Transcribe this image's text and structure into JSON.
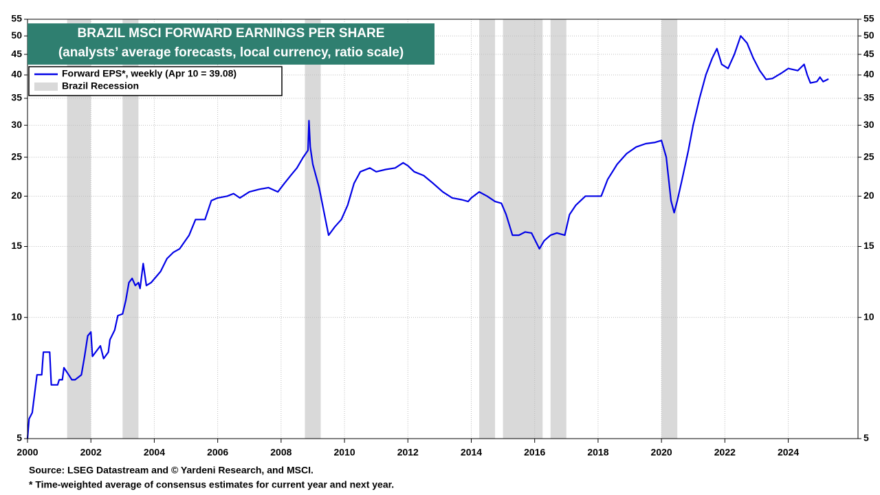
{
  "chart_data": {
    "type": "line",
    "title": "BRAZIL MSCI FORWARD EARNINGS PER SHARE",
    "subtitle": "(analysts’ average forecasts, local currency, ratio scale)",
    "log_scale": true,
    "grid": true,
    "legend_position": "upper left",
    "series": [
      {
        "name": "Forward EPS*, weekly (Apr 10 = 39.08)",
        "color": "#0000e6",
        "x": [
          2000.0,
          2000.05,
          2000.15,
          2000.3,
          2000.45,
          2000.5,
          2000.7,
          2000.75,
          2000.95,
          2001.0,
          2001.1,
          2001.15,
          2001.3,
          2001.4,
          2001.5,
          2001.7,
          2001.8,
          2001.9,
          2002.0,
          2002.05,
          2002.3,
          2002.4,
          2002.55,
          2002.6,
          2002.75,
          2002.85,
          2003.0,
          2003.1,
          2003.2,
          2003.3,
          2003.4,
          2003.5,
          2003.55,
          2003.65,
          2003.75,
          2003.9,
          2004.2,
          2004.4,
          2004.6,
          2004.8,
          2005.1,
          2005.3,
          2005.6,
          2005.8,
          2006.0,
          2006.3,
          2006.5,
          2006.7,
          2007.0,
          2007.3,
          2007.6,
          2007.9,
          2008.1,
          2008.3,
          2008.5,
          2008.7,
          2008.85,
          2008.88,
          2008.92,
          2009.0,
          2009.2,
          2009.4,
          2009.5,
          2009.7,
          2009.9,
          2010.1,
          2010.3,
          2010.5,
          2010.8,
          2011.0,
          2011.3,
          2011.6,
          2011.85,
          2012.0,
          2012.2,
          2012.5,
          2012.8,
          2013.1,
          2013.4,
          2013.7,
          2013.9,
          2014.0,
          2014.25,
          2014.5,
          2014.75,
          2014.95,
          2015.1,
          2015.3,
          2015.5,
          2015.7,
          2015.9,
          2016.15,
          2016.3,
          2016.5,
          2016.7,
          2016.95,
          2017.1,
          2017.3,
          2017.6,
          2017.9,
          2018.1,
          2018.3,
          2018.6,
          2018.9,
          2019.2,
          2019.5,
          2019.8,
          2020.0,
          2020.15,
          2020.3,
          2020.4,
          2020.5,
          2020.65,
          2020.85,
          2021.0,
          2021.2,
          2021.4,
          2021.6,
          2021.75,
          2021.9,
          2022.1,
          2022.3,
          2022.5,
          2022.7,
          2022.9,
          2023.1,
          2023.3,
          2023.5,
          2023.8,
          2024.0,
          2024.3,
          2024.5,
          2024.6,
          2024.7,
          2024.9,
          2025.0,
          2025.1,
          2025.27
        ],
        "values": [
          5.0,
          5.6,
          5.8,
          7.2,
          7.2,
          8.2,
          8.2,
          6.8,
          6.8,
          7.0,
          7.0,
          7.5,
          7.2,
          7.0,
          7.0,
          7.2,
          8.0,
          9.0,
          9.2,
          8.0,
          8.5,
          7.9,
          8.2,
          8.8,
          9.3,
          10.1,
          10.2,
          11.0,
          12.2,
          12.5,
          12.0,
          12.2,
          11.8,
          13.6,
          12.0,
          12.2,
          13.0,
          14.0,
          14.5,
          14.8,
          16.0,
          17.5,
          17.5,
          19.5,
          19.8,
          20.0,
          20.3,
          19.8,
          20.5,
          20.8,
          21.0,
          20.5,
          21.5,
          22.5,
          23.5,
          25.0,
          26.0,
          30.8,
          26.5,
          24.0,
          21.0,
          17.5,
          16.0,
          16.8,
          17.5,
          19.0,
          21.5,
          23.0,
          23.5,
          23.0,
          23.3,
          23.5,
          24.2,
          23.8,
          23.0,
          22.5,
          21.5,
          20.5,
          19.8,
          19.6,
          19.4,
          19.8,
          20.5,
          20.0,
          19.4,
          19.2,
          18.0,
          16.0,
          16.0,
          16.3,
          16.2,
          14.8,
          15.5,
          16.0,
          16.2,
          16.0,
          18.0,
          19.0,
          20.0,
          20.0,
          20.0,
          22.0,
          24.0,
          25.5,
          26.5,
          27.0,
          27.2,
          27.5,
          25.0,
          19.5,
          18.2,
          19.5,
          22.0,
          26.0,
          30.0,
          35.0,
          40.0,
          44.0,
          46.5,
          42.5,
          41.5,
          45.0,
          50.0,
          48.0,
          44.0,
          41.0,
          39.0,
          39.2,
          40.5,
          41.5,
          41.0,
          42.5,
          40.0,
          38.2,
          38.5,
          39.5,
          38.5,
          39.08
        ]
      }
    ],
    "recession_name": "Brazil Recession",
    "recession_color": "#d9d9d9",
    "recessions": [
      [
        2001.25,
        2002.0
      ],
      [
        2003.0,
        2003.5
      ],
      [
        2008.75,
        2009.25
      ],
      [
        2014.25,
        2014.75
      ],
      [
        2015.0,
        2016.25
      ],
      [
        2016.5,
        2017.0
      ],
      [
        2020.0,
        2020.5
      ]
    ],
    "xlim": [
      2000,
      2026.2
    ],
    "xticks": [
      2000,
      2002,
      2004,
      2006,
      2008,
      2010,
      2012,
      2014,
      2016,
      2018,
      2020,
      2022,
      2024
    ],
    "ylim": [
      5,
      55
    ],
    "yticks": [
      5,
      10,
      15,
      20,
      25,
      30,
      35,
      40,
      45,
      50,
      55
    ],
    "y2lim": [
      5,
      55
    ],
    "y2ticks": [
      5,
      10,
      15,
      20,
      25,
      30,
      35,
      40,
      45,
      50,
      55
    ],
    "source": "Source: LSEG Datastream and © Yardeni Research, and MSCI.",
    "footnote": "* Time-weighted average of consensus estimates for current year and next year."
  }
}
